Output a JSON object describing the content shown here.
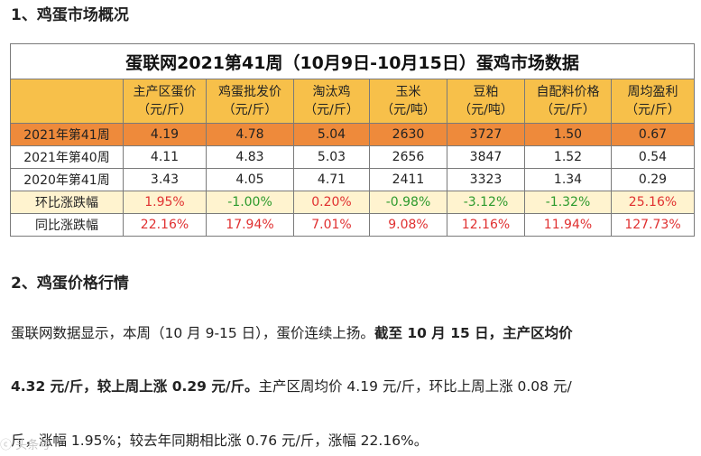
{
  "heading1": "1、鸡蛋市场概况",
  "table": {
    "title": "蛋联网2021第41周（10月9日-10月15日）蛋鸡市场数据",
    "columns": [
      {
        "name": "主产区蛋价",
        "unit": "（元/斤）"
      },
      {
        "name": "鸡蛋批发价",
        "unit": "（元/斤）"
      },
      {
        "name": "淘汰鸡",
        "unit": "（元/斤）"
      },
      {
        "name": "玉米",
        "unit": "（元/吨）"
      },
      {
        "name": "豆粕",
        "unit": "（元/吨）"
      },
      {
        "name": "自配料价格",
        "unit": "（元/斤）"
      },
      {
        "name": "周均盈利",
        "unit": "（元/斤）"
      }
    ],
    "rows": [
      {
        "label": "2021年第41周",
        "cells": [
          "4.19",
          "4.78",
          "5.04",
          "2630",
          "3727",
          "1.50",
          "0.67"
        ]
      },
      {
        "label": "2021年第40周",
        "cells": [
          "4.11",
          "4.83",
          "5.03",
          "2656",
          "3847",
          "1.52",
          "0.54"
        ]
      },
      {
        "label": "2020年第41周",
        "cells": [
          "3.43",
          "4.05",
          "4.71",
          "2411",
          "3323",
          "1.34",
          "0.29"
        ]
      },
      {
        "label": "环比涨跌幅",
        "cells": [
          "1.95%",
          "-1.00%",
          "0.20%",
          "-0.98%",
          "-3.12%",
          "-1.32%",
          "25.16%"
        ]
      },
      {
        "label": "同比涨跌幅",
        "cells": [
          "22.16%",
          "17.94%",
          "7.01%",
          "9.08%",
          "12.16%",
          "11.94%",
          "127.73%"
        ]
      }
    ],
    "colors": {
      "header": "#f7c04a",
      "current_week": "#ee8a3b",
      "wow_row": "#fff3cf",
      "up": "#e03030",
      "down": "#2d9a2d"
    }
  },
  "heading2": "2、鸡蛋价格行情",
  "paragraph": {
    "line1_normal": "蛋联网数据显示，本周（10 月 9-15 日），蛋价连续上扬。",
    "line1_bold": "截至 10 月 15 日，主产区均价",
    "line2_bold": "4.32 元/斤，较上周上涨 0.29 元/斤。",
    "line2_normal": "主产区周均价 4.19 元/斤，环比上周上涨 0.08 元/",
    "line3": "斤，涨幅 1.95%；较去年同期相比涨 0.76 元/斤，涨幅 22.16%。"
  },
  "watermark": "ⓒ 头条号"
}
